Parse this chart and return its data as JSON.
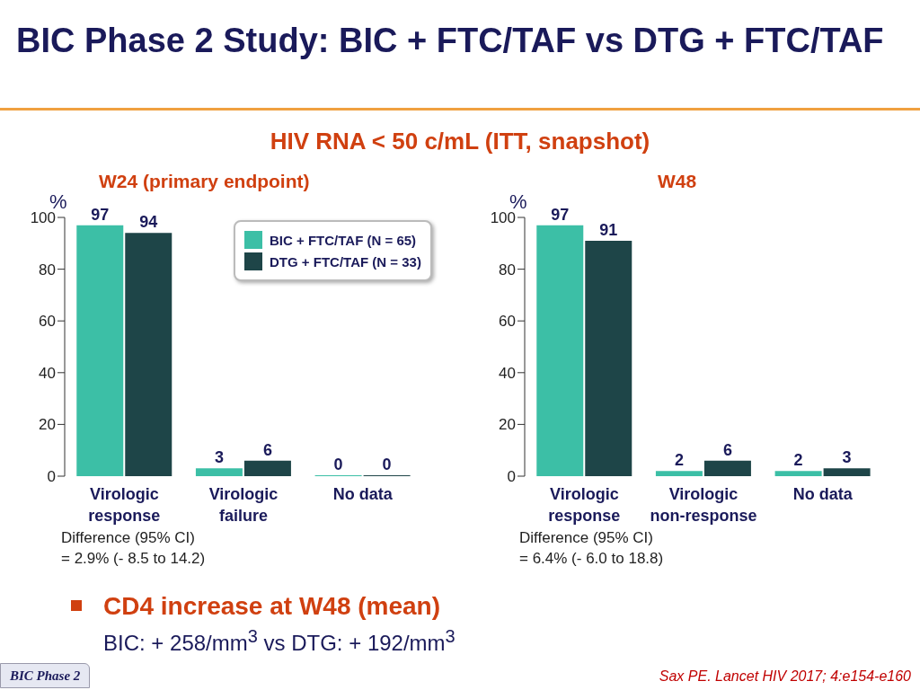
{
  "chart_data": [
    {
      "type": "bar",
      "title": "W24 (primary endpoint)",
      "ylabel": "%",
      "categories": [
        "Virologic response",
        "Virologic failure",
        "No data"
      ],
      "series": [
        {
          "name": "BIC + FTC/TAF (N = 65)",
          "color": "#3cbfa6",
          "values": [
            97,
            3,
            0
          ]
        },
        {
          "name": "DTG + FTC/TAF (N = 33)",
          "color": "#1e4548",
          "values": [
            94,
            6,
            0
          ]
        }
      ],
      "ylim": [
        0,
        100
      ],
      "yticks": [
        0,
        20,
        40,
        60,
        80,
        100
      ],
      "grid": false,
      "legend": "top right",
      "data_labels": true,
      "annotations": [
        "BIC Phase 2 Study: BIC + FTC/TAF vs DTG + FTC/TAF",
        "HIV RNA < 50 c/mL (ITT, snapshot)",
        "Difference (95% CI)\n= 2.9% (- 8.5 to 14.2)",
        "CD4 increase at W48 (mean)",
        "BIC: + 258/mm$^{3}$ vs DTG: + 192/mm$^{3}$",
        "Sax PE. Lancet HIV 2017; 4:e154-e160",
        "BIC Phase 2"
      ]
    },
    {
      "type": "bar",
      "title": "W48",
      "ylabel": "%",
      "categories": [
        "Virologic response",
        "Virologic non-response",
        "No data"
      ],
      "series": [
        {
          "color": "#3cbfa6",
          "values": [
            97,
            2,
            2
          ]
        },
        {
          "color": "#1e4548",
          "values": [
            91,
            6,
            3
          ]
        }
      ],
      "ylim": [
        0,
        100
      ],
      "yticks": [
        0,
        20,
        40,
        60,
        80,
        100
      ],
      "grid": false,
      "data_labels": true,
      "annotations": [
        "Difference (95% CI)\n= 6.4% (- 6.0 to 18.8)"
      ]
    }
  ]
}
